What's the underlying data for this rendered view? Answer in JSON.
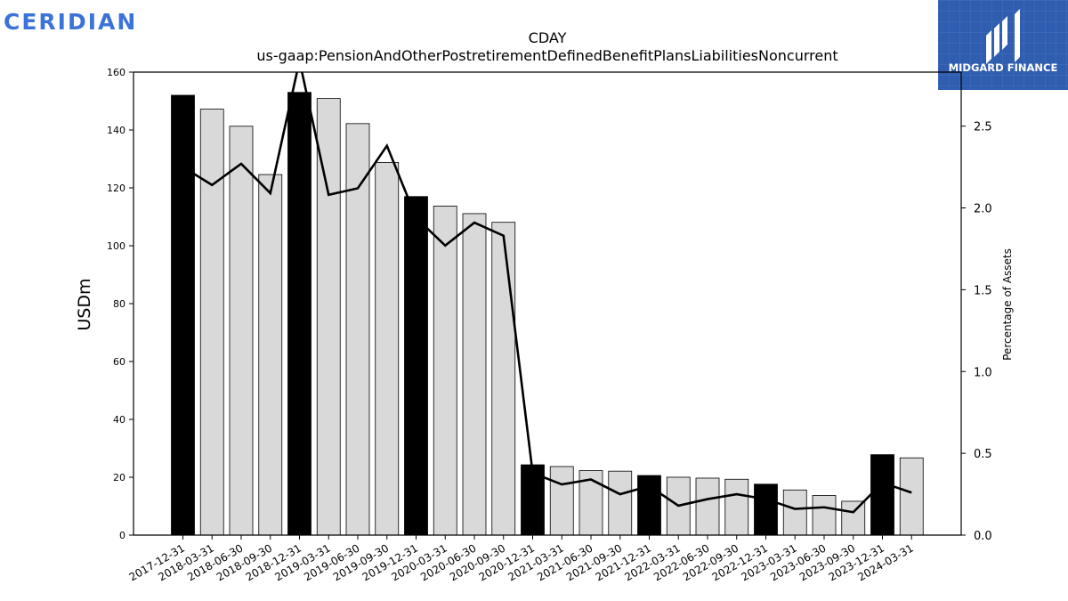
{
  "branding": {
    "company_logo_text": "CERIDIAN",
    "badge_text": "MIDGARD FINANCE",
    "company_color": "#3b73d8",
    "badge_color": "#2f5db0"
  },
  "chart_data": {
    "type": "bar",
    "title": "CDAY",
    "subtitle": "us-gaap:PensionAndOtherPostretirementDefinedBenefitPlansLiabilitiesNoncurrent",
    "ylabel": "USDm",
    "y2label": "Percentage of Assets",
    "ylim": [
      0,
      160
    ],
    "y2lim": [
      0,
      2.83
    ],
    "yticks": [
      "0",
      "20",
      "40",
      "60",
      "80",
      "100",
      "120",
      "140",
      "160"
    ],
    "y2ticks": [
      "0.0",
      "0.5",
      "1.0",
      "1.5",
      "2.0",
      "2.5"
    ],
    "categories": [
      "2017-12-31",
      "2018-03-31",
      "2018-06-30",
      "2018-09-30",
      "2018-12-31",
      "2019-03-31",
      "2019-06-30",
      "2019-09-30",
      "2019-12-31",
      "2020-03-31",
      "2020-06-30",
      "2020-09-30",
      "2020-12-31",
      "2021-03-31",
      "2021-06-30",
      "2021-09-30",
      "2021-12-31",
      "2022-03-31",
      "2022-06-30",
      "2022-09-30",
      "2022-12-31",
      "2023-03-31",
      "2023-06-30",
      "2023-09-30",
      "2023-12-31",
      "2024-03-31"
    ],
    "series": [
      {
        "chart": "bar",
        "axis": "left",
        "values": [
          152.0,
          147.2,
          141.3,
          124.6,
          153.0,
          150.9,
          142.2,
          128.8,
          117.0,
          113.7,
          111.1,
          108.1,
          24.3,
          23.7,
          22.3,
          22.1,
          20.6,
          20.0,
          19.7,
          19.3,
          17.6,
          15.6,
          13.7,
          11.7,
          27.8,
          26.7
        ],
        "highlight": [
          true,
          false,
          false,
          false,
          true,
          false,
          false,
          false,
          true,
          false,
          false,
          false,
          true,
          false,
          false,
          false,
          true,
          false,
          false,
          false,
          true,
          false,
          false,
          false,
          true,
          false
        ]
      },
      {
        "chart": "line",
        "axis": "right",
        "values": [
          2.25,
          2.14,
          2.27,
          2.09,
          2.9,
          2.08,
          2.12,
          2.38,
          1.94,
          1.77,
          1.91,
          1.83,
          0.38,
          0.31,
          0.34,
          0.25,
          0.3,
          0.18,
          0.22,
          0.25,
          0.22,
          0.16,
          0.17,
          0.14,
          0.32,
          0.26
        ]
      }
    ],
    "colors": {
      "highlight_bar": "#000000",
      "bar": "#d9d9d9",
      "bar_edge": "#000000",
      "line": "#000000"
    },
    "grid": false,
    "legend": "none"
  }
}
